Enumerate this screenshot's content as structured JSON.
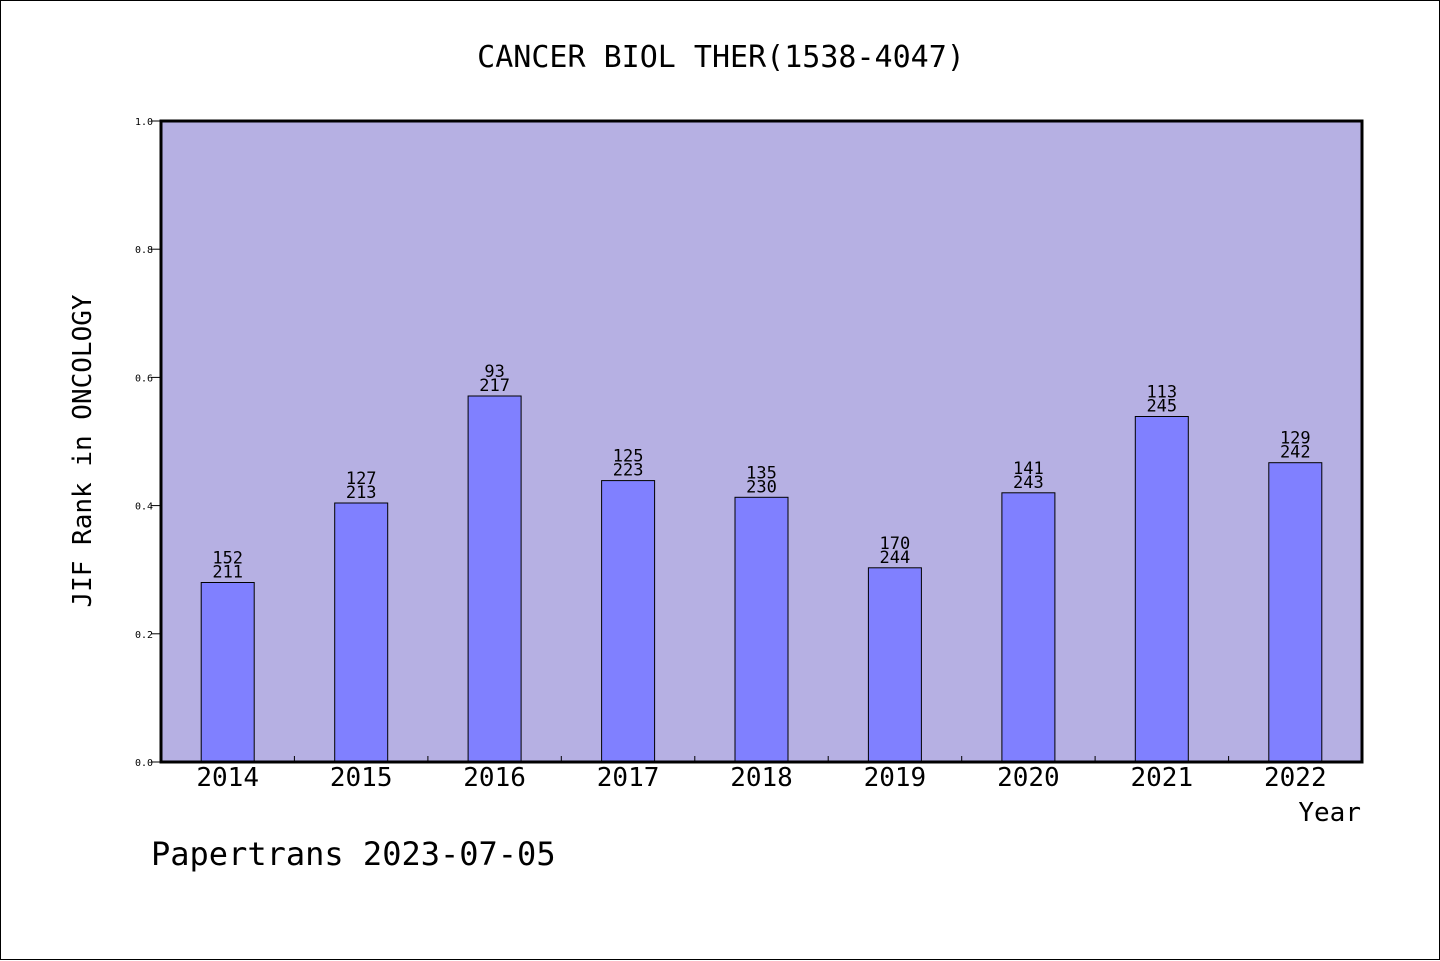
{
  "chart_data": {
    "type": "bar",
    "title": "CANCER BIOL THER(1538-4047)",
    "xlabel": "Year",
    "ylabel": "JIF Rank in ONCOLOGY",
    "footer": "Papertrans 2023-07-05",
    "categories": [
      "2014",
      "2015",
      "2016",
      "2017",
      "2018",
      "2019",
      "2020",
      "2021",
      "2022"
    ],
    "values": [
      0.28,
      0.404,
      0.571,
      0.439,
      0.413,
      0.303,
      0.42,
      0.539,
      0.467
    ],
    "labels_top": [
      "152",
      "127",
      "93",
      "125",
      "135",
      "170",
      "141",
      "113",
      "129"
    ],
    "labels_bottom": [
      "211",
      "213",
      "217",
      "223",
      "230",
      "244",
      "243",
      "245",
      "242"
    ],
    "ylim": [
      0,
      1.0
    ],
    "yticks": [
      "0.0",
      "0.2",
      "0.4",
      "0.6",
      "0.8",
      "1.0"
    ],
    "grid": false,
    "colors": {
      "plot_bg": "#b6b0e3",
      "bar": "#8080ff",
      "bar_edge": "#000000"
    }
  }
}
